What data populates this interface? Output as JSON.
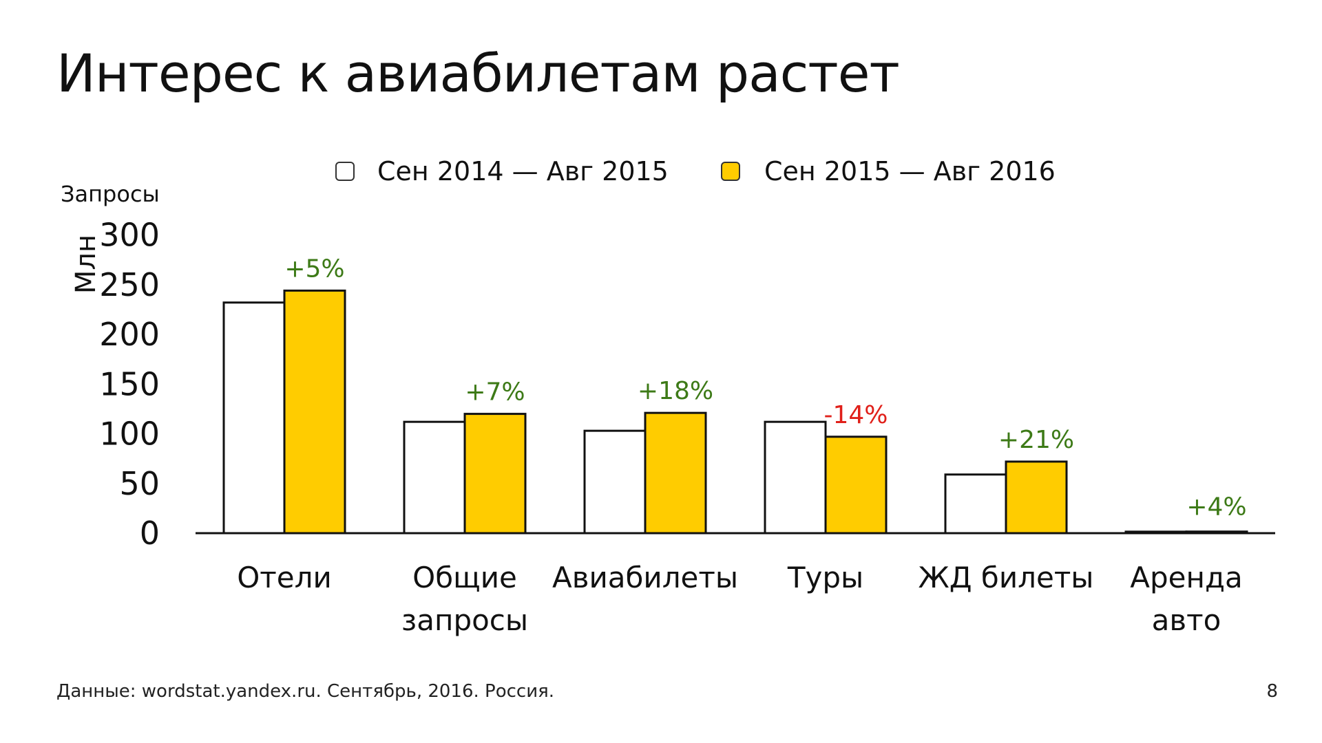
{
  "slide": {
    "title": "Интерес к авиабилетам растет",
    "footer": "Данные: wordstat.yandex.ru. Сентябрь, 2016. Россия.",
    "page_number": "8"
  },
  "colors": {
    "series_2015": "#ffffff",
    "series_2016": "#ffcc00",
    "outline": "#111111",
    "growth_positive": "#3d7a17",
    "growth_negative": "#e0201a"
  },
  "chart_data": {
    "type": "bar",
    "title": "",
    "ylabel_top": "Запросы",
    "ylabel": "Млн",
    "ylim": [
      0,
      300
    ],
    "yticks": [
      "0",
      "50",
      "100",
      "150",
      "200",
      "250",
      "300"
    ],
    "grid": false,
    "legend_position": "top",
    "categories": [
      [
        "Отели"
      ],
      [
        "Общие",
        "запросы"
      ],
      [
        "Авиабилеты"
      ],
      [
        "Туры"
      ],
      [
        "ЖД билеты"
      ],
      [
        "Аренда",
        "авто"
      ]
    ],
    "series": [
      {
        "name": "Сен 2014 — Авг 2015",
        "values": [
          232,
          112,
          103,
          112,
          59,
          1.5
        ]
      },
      {
        "name": "Сен 2015 — Авг 2016",
        "values": [
          244,
          120,
          121,
          97,
          72,
          1.6
        ]
      }
    ],
    "annotations": [
      {
        "text": "+5%",
        "sign": "positive"
      },
      {
        "text": "+7%",
        "sign": "positive"
      },
      {
        "text": "+18%",
        "sign": "positive"
      },
      {
        "text": "-14%",
        "sign": "negative"
      },
      {
        "text": "+21%",
        "sign": "positive"
      },
      {
        "text": "+4%",
        "sign": "positive"
      }
    ]
  }
}
